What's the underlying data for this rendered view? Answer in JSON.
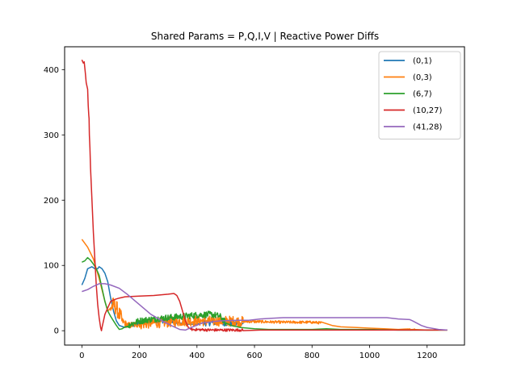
{
  "chart_data": {
    "type": "line",
    "title": "Shared Params = P,Q,I,V | Reactive Power Diffs",
    "xlabel": "",
    "ylabel": "",
    "xlim": [
      -60,
      1330
    ],
    "ylim": [
      -22,
      435
    ],
    "xticks": [
      0,
      200,
      400,
      600,
      800,
      1000,
      1200
    ],
    "yticks": [
      0,
      100,
      200,
      300,
      400
    ],
    "grid": false,
    "legend_position": "top-right",
    "series": [
      {
        "name": "(0,1)",
        "color": "#1f77b4",
        "noise": [
          {
            "from": 170,
            "to": 330,
            "amp": 4
          },
          {
            "from": 420,
            "to": 560,
            "amp": 5
          }
        ],
        "points": [
          [
            0,
            70
          ],
          [
            10,
            80
          ],
          [
            20,
            95
          ],
          [
            35,
            98
          ],
          [
            45,
            95
          ],
          [
            55,
            95
          ],
          [
            60,
            98
          ],
          [
            70,
            95
          ],
          [
            80,
            88
          ],
          [
            90,
            75
          ],
          [
            100,
            50
          ],
          [
            110,
            30
          ],
          [
            120,
            15
          ],
          [
            130,
            8
          ],
          [
            150,
            5
          ],
          [
            170,
            8
          ],
          [
            200,
            12
          ],
          [
            250,
            15
          ],
          [
            300,
            16
          ],
          [
            330,
            13
          ],
          [
            360,
            10
          ],
          [
            400,
            10
          ],
          [
            420,
            12
          ],
          [
            480,
            13
          ],
          [
            520,
            11
          ],
          [
            560,
            10
          ]
        ]
      },
      {
        "name": "(0,3)",
        "color": "#ff7f0e",
        "noise": [
          {
            "from": 100,
            "to": 140,
            "amp": 12
          },
          {
            "from": 140,
            "to": 200,
            "amp": 5
          },
          {
            "from": 200,
            "to": 560,
            "amp": 8
          },
          {
            "from": 560,
            "to": 830,
            "amp": 2
          },
          {
            "from": 1130,
            "to": 1160,
            "amp": 1
          }
        ],
        "points": [
          [
            0,
            140
          ],
          [
            20,
            128
          ],
          [
            40,
            110
          ],
          [
            60,
            80
          ],
          [
            80,
            45
          ],
          [
            90,
            30
          ],
          [
            100,
            35
          ],
          [
            110,
            40
          ],
          [
            120,
            35
          ],
          [
            130,
            25
          ],
          [
            140,
            15
          ],
          [
            160,
            8
          ],
          [
            200,
            10
          ],
          [
            250,
            12
          ],
          [
            300,
            13
          ],
          [
            350,
            15
          ],
          [
            400,
            15
          ],
          [
            450,
            15
          ],
          [
            500,
            15
          ],
          [
            560,
            14
          ],
          [
            600,
            14
          ],
          [
            700,
            13
          ],
          [
            800,
            13
          ],
          [
            830,
            12
          ],
          [
            870,
            8
          ],
          [
            900,
            6
          ],
          [
            950,
            5
          ],
          [
            1000,
            4
          ],
          [
            1050,
            3
          ],
          [
            1100,
            2
          ],
          [
            1150,
            2
          ],
          [
            1200,
            1
          ],
          [
            1270,
            1
          ]
        ]
      },
      {
        "name": "(6,7)",
        "color": "#2ca02c",
        "noise": [
          {
            "from": 160,
            "to": 500,
            "amp": 5
          }
        ],
        "points": [
          [
            0,
            105
          ],
          [
            10,
            107
          ],
          [
            20,
            112
          ],
          [
            30,
            108
          ],
          [
            40,
            102
          ],
          [
            50,
            95
          ],
          [
            60,
            85
          ],
          [
            70,
            65
          ],
          [
            80,
            45
          ],
          [
            90,
            30
          ],
          [
            100,
            22
          ],
          [
            110,
            15
          ],
          [
            120,
            8
          ],
          [
            130,
            2
          ],
          [
            140,
            3
          ],
          [
            150,
            6
          ],
          [
            170,
            10
          ],
          [
            200,
            15
          ],
          [
            250,
            18
          ],
          [
            300,
            20
          ],
          [
            350,
            22
          ],
          [
            400,
            24
          ],
          [
            450,
            25
          ],
          [
            480,
            22
          ],
          [
            500,
            12
          ],
          [
            520,
            8
          ],
          [
            550,
            5
          ],
          [
            600,
            3
          ],
          [
            650,
            2
          ],
          [
            700,
            2
          ],
          [
            800,
            2
          ],
          [
            850,
            3
          ],
          [
            900,
            2
          ],
          [
            1000,
            2
          ],
          [
            1100,
            1
          ],
          [
            1200,
            1
          ],
          [
            1270,
            1
          ]
        ]
      },
      {
        "name": "(10,27)",
        "color": "#d62728",
        "noise": [
          {
            "from": 380,
            "to": 560,
            "amp": 2
          }
        ],
        "points": [
          [
            0,
            415
          ],
          [
            5,
            410
          ],
          [
            8,
            412
          ],
          [
            12,
            395
          ],
          [
            15,
            380
          ],
          [
            20,
            370
          ],
          [
            22,
            345
          ],
          [
            24,
            330
          ],
          [
            25,
            325
          ],
          [
            26,
            300
          ],
          [
            28,
            280
          ],
          [
            30,
            250
          ],
          [
            33,
            220
          ],
          [
            36,
            190
          ],
          [
            40,
            150
          ],
          [
            45,
            110
          ],
          [
            50,
            70
          ],
          [
            55,
            40
          ],
          [
            60,
            20
          ],
          [
            65,
            5
          ],
          [
            68,
            0
          ],
          [
            70,
            5
          ],
          [
            75,
            15
          ],
          [
            80,
            25
          ],
          [
            90,
            35
          ],
          [
            100,
            45
          ],
          [
            115,
            48
          ],
          [
            130,
            50
          ],
          [
            150,
            52
          ],
          [
            200,
            53
          ],
          [
            250,
            54
          ],
          [
            300,
            56
          ],
          [
            320,
            57
          ],
          [
            330,
            54
          ],
          [
            340,
            45
          ],
          [
            350,
            30
          ],
          [
            360,
            15
          ],
          [
            370,
            5
          ],
          [
            380,
            2
          ],
          [
            450,
            1
          ],
          [
            550,
            1
          ],
          [
            620,
            1
          ],
          [
            650,
            1
          ],
          [
            700,
            1
          ],
          [
            800,
            1
          ],
          [
            900,
            1
          ],
          [
            1000,
            1
          ],
          [
            1100,
            1
          ],
          [
            1200,
            1
          ],
          [
            1270,
            1
          ]
        ]
      },
      {
        "name": "(41,28)",
        "color": "#9467bd",
        "noise": [],
        "points": [
          [
            0,
            60
          ],
          [
            20,
            63
          ],
          [
            40,
            68
          ],
          [
            60,
            72
          ],
          [
            80,
            72
          ],
          [
            100,
            70
          ],
          [
            130,
            65
          ],
          [
            160,
            55
          ],
          [
            200,
            40
          ],
          [
            240,
            25
          ],
          [
            280,
            15
          ],
          [
            310,
            8
          ],
          [
            340,
            2
          ],
          [
            360,
            1
          ],
          [
            380,
            5
          ],
          [
            420,
            12
          ],
          [
            480,
            15
          ],
          [
            540,
            16
          ],
          [
            580,
            16
          ],
          [
            620,
            18
          ],
          [
            660,
            19
          ],
          [
            700,
            20
          ],
          [
            800,
            20
          ],
          [
            900,
            20
          ],
          [
            1000,
            20
          ],
          [
            1060,
            20
          ],
          [
            1100,
            18
          ],
          [
            1140,
            17
          ],
          [
            1150,
            15
          ],
          [
            1180,
            8
          ],
          [
            1200,
            5
          ],
          [
            1240,
            2
          ],
          [
            1270,
            1
          ]
        ]
      }
    ]
  }
}
